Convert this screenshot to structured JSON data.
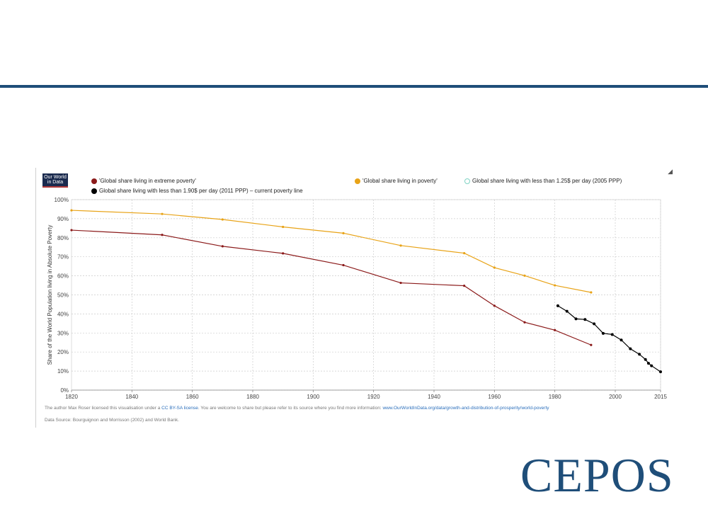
{
  "slide": {
    "brand_logo": "CEPOS",
    "accent_color": "#1f4e79"
  },
  "owid_logo": {
    "line1": "Our World",
    "line2": "in Data"
  },
  "legend": [
    {
      "label": "'Global share living in extreme poverty'",
      "color": "#8b1a1a"
    },
    {
      "label": "'Global share living in poverty'",
      "color": "#e8a317"
    },
    {
      "label": "Global share living with less than 1.25$ per day (2005 PPP)",
      "color": "#7fd3c4"
    },
    {
      "label": "Global share living with less than 1.90$ per day (2011 PPP) – current poverty line",
      "color": "#000000"
    }
  ],
  "footer": {
    "license_pre": "The author Max Roser licensed this visualisation under a",
    "license_link": "CC BY-SA license",
    "license_post": ". You are welcome to share but please refer to its source where you find more information:",
    "source_link": "www.OurWorldInData.org/data/growth-and-distribution-of-prosperity/world-poverty",
    "data_source": "Data Source: Bourguignon and Morrisson (2002) and World Bank."
  },
  "chart_data": {
    "type": "line",
    "title": "",
    "xlabel": "",
    "ylabel": "Share of the World Population living in Absolute Poverty",
    "xlim": [
      1820,
      2015
    ],
    "ylim": [
      0,
      100
    ],
    "x_ticks": [
      1820,
      1840,
      1860,
      1880,
      1900,
      1920,
      1940,
      1960,
      1980,
      2000,
      2015
    ],
    "y_ticks": [
      "0%",
      "10%",
      "20%",
      "30%",
      "40%",
      "50%",
      "60%",
      "70%",
      "80%",
      "90%",
      "100%"
    ],
    "grid": true,
    "series": [
      {
        "name": "'Global share living in extreme poverty'",
        "color": "#8b1a1a",
        "x": [
          1820,
          1850,
          1870,
          1890,
          1910,
          1929,
          1950,
          1960,
          1970,
          1980,
          1992
        ],
        "y": [
          84,
          81.5,
          75.5,
          71.8,
          65.6,
          56.3,
          54.8,
          44.3,
          35.6,
          31.5,
          23.7
        ]
      },
      {
        "name": "'Global share living in poverty'",
        "color": "#e8a317",
        "x": [
          1820,
          1850,
          1870,
          1890,
          1910,
          1929,
          1950,
          1960,
          1970,
          1980,
          1992
        ],
        "y": [
          94.4,
          92.5,
          89.6,
          85.7,
          82.4,
          75.9,
          71.9,
          64.3,
          60.1,
          55.0,
          51.3
        ]
      },
      {
        "name": "Global share living with less than 1.90$ per day (2011 PPP) – current poverty line",
        "color": "#000000",
        "x": [
          1981,
          1984,
          1987,
          1990,
          1993,
          1996,
          1999,
          2002,
          2005,
          2008,
          2010,
          2011,
          2012,
          2015
        ],
        "y": [
          44.3,
          41.4,
          37.4,
          37.1,
          34.8,
          29.8,
          29.2,
          26.3,
          21.7,
          18.8,
          16.1,
          14.1,
          12.8,
          9.6
        ]
      }
    ]
  }
}
